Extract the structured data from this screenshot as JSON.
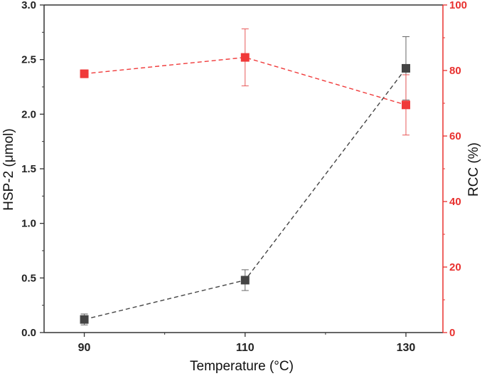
{
  "chart_data": {
    "type": "line",
    "xlabel": "Temperature (°C)",
    "ylabel_left": "HSP-2 (μmol)",
    "ylabel_right": "RCC (%)",
    "x_ticks": [
      90,
      110,
      130
    ],
    "x_tick_labels": [
      "90",
      "110",
      "130"
    ],
    "xlim": [
      85,
      134.6
    ],
    "ylim_left": [
      0,
      3.0
    ],
    "ylim_right": [
      0,
      100
    ],
    "y_left_ticks": [
      0,
      0.5,
      1.0,
      1.5,
      2.0,
      2.5,
      3.0
    ],
    "y_left_tick_labels": [
      "0.0",
      "0.5",
      "1.0",
      "1.5",
      "2.0",
      "2.5",
      "3.0"
    ],
    "y_right_ticks": [
      0,
      20,
      40,
      60,
      80,
      100
    ],
    "y_right_tick_labels": [
      "0",
      "20",
      "40",
      "60",
      "80",
      "100"
    ],
    "colors": {
      "left_axis": "#333333",
      "right_axis": "#e8302e",
      "series_hsp": "#444444",
      "series_rcc": "#f03a3a"
    },
    "series": [
      {
        "axis": "left",
        "marker": "square",
        "line": "dashed",
        "x": [
          90,
          110,
          130
        ],
        "y": [
          0.12,
          0.48,
          2.42
        ],
        "yerr": [
          0.05,
          0.095,
          0.29
        ]
      },
      {
        "axis": "right",
        "marker": "square",
        "line": "dashed",
        "x": [
          90,
          110,
          130
        ],
        "y": [
          79,
          84,
          69.5
        ],
        "yerr": [
          1.2,
          8.7,
          9.2
        ]
      }
    ],
    "grid": false,
    "legend": "none"
  }
}
